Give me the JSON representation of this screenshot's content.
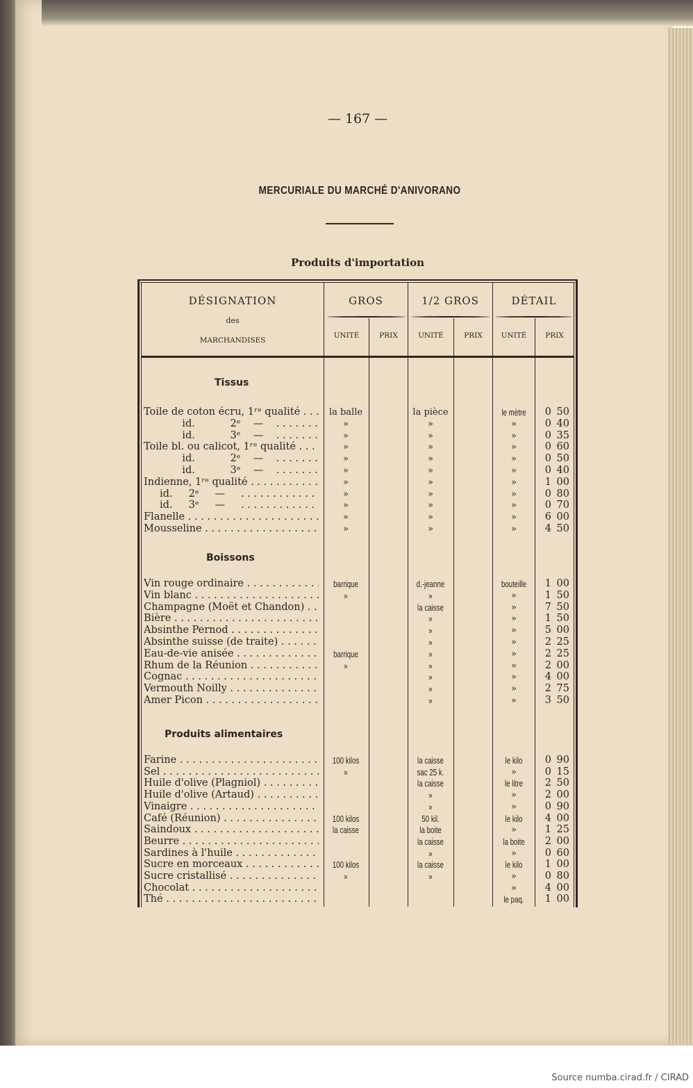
{
  "page_number": "— 167 —",
  "title": "MERCURIALE DU MARCHÉ D'ANIVORANO",
  "subtitle": "Produits d'importation",
  "source": "Source numba.cirad.fr / CIRAD",
  "table": {
    "headers": {
      "designation": "DÉSIGNATION",
      "designation_des": "des",
      "designation_marchandises": "MARCHANDISES",
      "gros": "GROS",
      "demi_gros": "1/2 GROS",
      "detail": "DÉTAIL",
      "unite": "UNITÉ",
      "prix": "PRIX"
    },
    "sections": [
      {
        "title": "Tissus",
        "rows": [
          {
            "name": "Toile de coton écru, 1ʳᵉ qualité",
            "gros_unit": "la balle",
            "gros_prix": "",
            "demi_unit": "la pièce",
            "demi_prix": "",
            "detail_unit": "le mètre",
            "detail_prix": "0 50"
          },
          {
            "name": "            id.           2ᵉ    —   ",
            "gros_unit": "»",
            "gros_prix": "",
            "demi_unit": "»",
            "demi_prix": "",
            "detail_unit": "»",
            "detail_prix": "0 40"
          },
          {
            "name": "            id.           3ᵉ    —   ",
            "gros_unit": "»",
            "gros_prix": "",
            "demi_unit": "»",
            "demi_prix": "",
            "detail_unit": "»",
            "detail_prix": "0 35"
          },
          {
            "name": "Toile bl. ou calicot, 1ʳᵉ qualité",
            "gros_unit": "»",
            "gros_prix": "",
            "demi_unit": "»",
            "demi_prix": "",
            "detail_unit": "»",
            "detail_prix": "0 60"
          },
          {
            "name": "            id.           2ᵉ    —   ",
            "gros_unit": "»",
            "gros_prix": "",
            "demi_unit": "»",
            "demi_prix": "",
            "detail_unit": "»",
            "detail_prix": "0 50"
          },
          {
            "name": "            id.           3ᵉ    —   ",
            "gros_unit": "»",
            "gros_prix": "",
            "demi_unit": "»",
            "demi_prix": "",
            "detail_unit": "»",
            "detail_prix": "0 40"
          },
          {
            "name": "Indienne, 1ʳᵉ qualité",
            "gros_unit": "»",
            "gros_prix": "",
            "demi_unit": "»",
            "demi_prix": "",
            "detail_unit": "»",
            "detail_prix": "1 00"
          },
          {
            "name": "     id.     2ᵉ     —    ",
            "gros_unit": "»",
            "gros_prix": "",
            "demi_unit": "»",
            "demi_prix": "",
            "detail_unit": "»",
            "detail_prix": "0 80"
          },
          {
            "name": "     id.     3ᵉ     —    ",
            "gros_unit": "»",
            "gros_prix": "",
            "demi_unit": "»",
            "demi_prix": "",
            "detail_unit": "»",
            "detail_prix": "0 70"
          },
          {
            "name": "Flanelle",
            "gros_unit": "»",
            "gros_prix": "",
            "demi_unit": "»",
            "demi_prix": "",
            "detail_unit": "»",
            "detail_prix": "6 00"
          },
          {
            "name": "Mousseline",
            "gros_unit": "»",
            "gros_prix": "",
            "demi_unit": "»",
            "demi_prix": "",
            "detail_unit": "»",
            "detail_prix": "4 50"
          }
        ]
      },
      {
        "title": "Boissons",
        "rows": [
          {
            "name": "Vin rouge ordinaire",
            "gros_unit": "barrique",
            "gros_prix": "",
            "demi_unit": "d.-jeanne",
            "demi_prix": "",
            "detail_unit": "bouteille",
            "detail_prix": "1 00"
          },
          {
            "name": "Vin blanc",
            "gros_unit": "»",
            "gros_prix": "",
            "demi_unit": "»",
            "demi_prix": "",
            "detail_unit": "»",
            "detail_prix": "1 50"
          },
          {
            "name": "Champagne (Moët et Chandon)",
            "gros_unit": "",
            "gros_prix": "",
            "demi_unit": "la caisse",
            "demi_prix": "",
            "detail_unit": "»",
            "detail_prix": "7 50"
          },
          {
            "name": "Bière",
            "gros_unit": "",
            "gros_prix": "",
            "demi_unit": "»",
            "demi_prix": "",
            "detail_unit": "»",
            "detail_prix": "1 50"
          },
          {
            "name": "Absinthe Pernod",
            "gros_unit": "",
            "gros_prix": "",
            "demi_unit": "»",
            "demi_prix": "",
            "detail_unit": "»",
            "detail_prix": "5 00"
          },
          {
            "name": "Absinthe suisse (de traite)",
            "gros_unit": "",
            "gros_prix": "",
            "demi_unit": "»",
            "demi_prix": "",
            "detail_unit": "»",
            "detail_prix": "2 25"
          },
          {
            "name": "Eau-de-vie anisée",
            "gros_unit": "barrique",
            "gros_prix": "",
            "demi_unit": "»",
            "demi_prix": "",
            "detail_unit": "»",
            "detail_prix": "2 25"
          },
          {
            "name": "Rhum de la Réunion",
            "gros_unit": "»",
            "gros_prix": "",
            "demi_unit": "»",
            "demi_prix": "",
            "detail_unit": "»",
            "detail_prix": "2 00"
          },
          {
            "name": "Cognac",
            "gros_unit": "",
            "gros_prix": "",
            "demi_unit": "»",
            "demi_prix": "",
            "detail_unit": "»",
            "detail_prix": "4 00"
          },
          {
            "name": "Vermouth Noilly",
            "gros_unit": "",
            "gros_prix": "",
            "demi_unit": "»",
            "demi_prix": "",
            "detail_unit": "»",
            "detail_prix": "2 75"
          },
          {
            "name": "Amer Picon",
            "gros_unit": "",
            "gros_prix": "",
            "demi_unit": "»",
            "demi_prix": "",
            "detail_unit": "»",
            "detail_prix": "3 50"
          }
        ]
      },
      {
        "title": "Produits alimentaires",
        "rows": [
          {
            "name": "Farine",
            "gros_unit": "100 kilos",
            "gros_prix": "",
            "demi_unit": "la caisse",
            "demi_prix": "",
            "detail_unit": "le kilo",
            "detail_prix": "0 90"
          },
          {
            "name": "Sel",
            "gros_unit": "»",
            "gros_prix": "",
            "demi_unit": "sac 25 k.",
            "demi_prix": "",
            "detail_unit": "»",
            "detail_prix": "0 15"
          },
          {
            "name": "Huile d'olive (Plagniol)",
            "gros_unit": "",
            "gros_prix": "",
            "demi_unit": "la caisse",
            "demi_prix": "",
            "detail_unit": "le litre",
            "detail_prix": "2 50"
          },
          {
            "name": "Huile d'olive (Artaud)",
            "gros_unit": "",
            "gros_prix": "",
            "demi_unit": "»",
            "demi_prix": "",
            "detail_unit": "»",
            "detail_prix": "2 00"
          },
          {
            "name": "Vinaigre",
            "gros_unit": "",
            "gros_prix": "",
            "demi_unit": "»",
            "demi_prix": "",
            "detail_unit": "»",
            "detail_prix": "0 90"
          },
          {
            "name": "Café (Réunion)",
            "gros_unit": "100 kilos",
            "gros_prix": "",
            "demi_unit": "50 kil.",
            "demi_prix": "",
            "detail_unit": "le kilo",
            "detail_prix": "4 00"
          },
          {
            "name": "Saindoux",
            "gros_unit": "la caisse",
            "gros_prix": "",
            "demi_unit": "la boite",
            "demi_prix": "",
            "detail_unit": "»",
            "detail_prix": "1 25"
          },
          {
            "name": "Beurre",
            "gros_unit": "",
            "gros_prix": "",
            "demi_unit": "la caisse",
            "demi_prix": "",
            "detail_unit": "la boite",
            "detail_prix": "2 00"
          },
          {
            "name": "Sardines à l'huile",
            "gros_unit": "",
            "gros_prix": "",
            "demi_unit": "»",
            "demi_prix": "",
            "detail_unit": "»",
            "detail_prix": "0 60"
          },
          {
            "name": "Sucre en morceaux",
            "gros_unit": "100 kilos",
            "gros_prix": "",
            "demi_unit": "la caisse",
            "demi_prix": "",
            "detail_unit": "le kilo",
            "detail_prix": "1 00"
          },
          {
            "name": "Sucre cristallisé",
            "gros_unit": "»",
            "gros_prix": "",
            "demi_unit": "»",
            "demi_prix": "",
            "detail_unit": "»",
            "detail_prix": "0 80"
          },
          {
            "name": "Chocolat",
            "gros_unit": "",
            "gros_prix": "",
            "demi_unit": "",
            "demi_prix": "",
            "detail_unit": "»",
            "detail_prix": "4 00"
          },
          {
            "name": "Thé",
            "gros_unit": "",
            "gros_prix": "",
            "demi_unit": "",
            "demi_prix": "",
            "detail_unit": "le paq.",
            "detail_prix": "1 00"
          }
        ]
      }
    ]
  }
}
